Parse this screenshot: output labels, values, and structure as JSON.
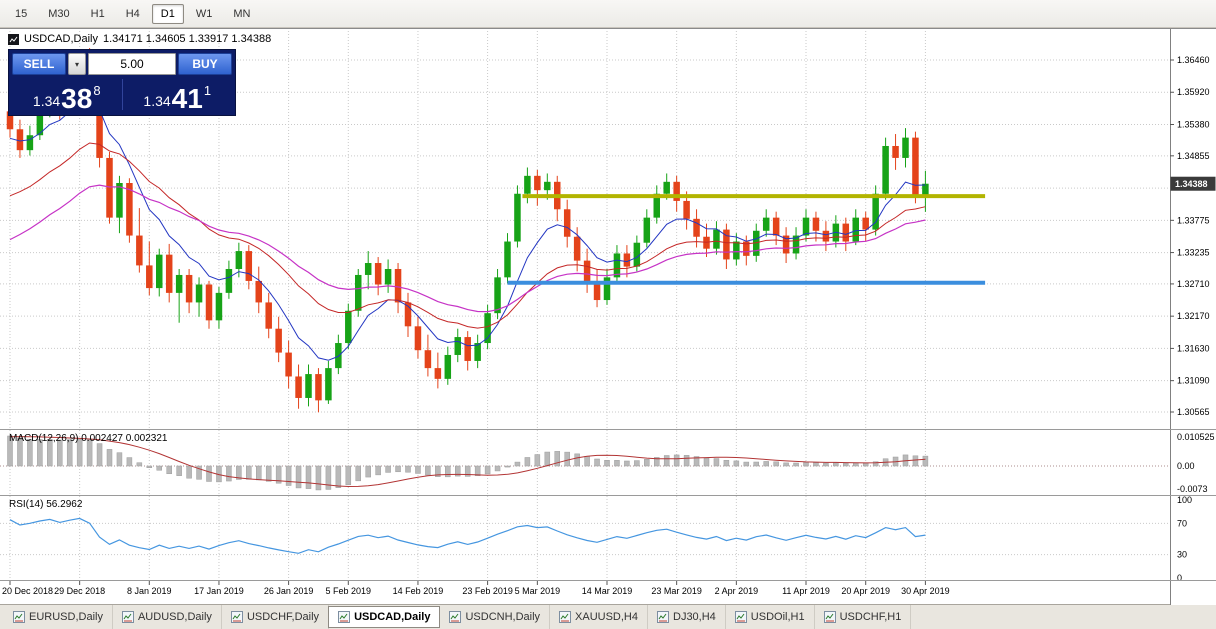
{
  "toolbar": {
    "timeframes": [
      {
        "label": "15",
        "active": false
      },
      {
        "label": "M30",
        "active": false
      },
      {
        "label": "H1",
        "active": false
      },
      {
        "label": "H4",
        "active": false
      },
      {
        "label": "D1",
        "active": true
      },
      {
        "label": "W1",
        "active": false
      },
      {
        "label": "MN",
        "active": false
      }
    ]
  },
  "chart_title": {
    "symbol": "USDCAD,Daily",
    "ohlc": "1.34171 1.34605 1.33917 1.34388"
  },
  "trade_panel": {
    "sell_label": "SELL",
    "buy_label": "BUY",
    "lot_value": "5.00",
    "dropdown_glyph": "▾",
    "sell_price_base": "1.34",
    "sell_price_big": "38",
    "sell_price_sup": "8",
    "buy_price_base": "1.34",
    "buy_price_big": "41",
    "buy_price_sup": "1"
  },
  "indicators": {
    "macd_label": "MACD(12,26,9) 0.002427 0.002321",
    "rsi_label": "RSI(14) 56.2962"
  },
  "chart_data": {
    "type": "candlestick",
    "symbol": "USDCAD",
    "timeframe": "Daily",
    "candles": [
      [
        1.356,
        1.3578,
        1.3516,
        1.353
      ],
      [
        1.353,
        1.3546,
        1.3482,
        1.3495
      ],
      [
        1.3495,
        1.3536,
        1.3486,
        1.352
      ],
      [
        1.352,
        1.3576,
        1.3512,
        1.356
      ],
      [
        1.356,
        1.3606,
        1.355,
        1.359
      ],
      [
        1.359,
        1.3602,
        1.3546,
        1.357
      ],
      [
        1.357,
        1.3626,
        1.3562,
        1.361
      ],
      [
        1.361,
        1.3662,
        1.36,
        1.3645
      ],
      [
        1.3645,
        1.3666,
        1.3596,
        1.3612
      ],
      [
        1.3612,
        1.3636,
        1.3466,
        1.3482
      ],
      [
        1.3482,
        1.3492,
        1.3372,
        1.3382
      ],
      [
        1.3382,
        1.3452,
        1.3356,
        1.344
      ],
      [
        1.344,
        1.3448,
        1.334,
        1.3352
      ],
      [
        1.3352,
        1.3398,
        1.329,
        1.3302
      ],
      [
        1.3302,
        1.3342,
        1.3252,
        1.3264
      ],
      [
        1.3264,
        1.333,
        1.325,
        1.332
      ],
      [
        1.332,
        1.3338,
        1.324,
        1.3256
      ],
      [
        1.3256,
        1.3296,
        1.3206,
        1.3286
      ],
      [
        1.3286,
        1.3296,
        1.3222,
        1.324
      ],
      [
        1.324,
        1.3282,
        1.3216,
        1.327
      ],
      [
        1.327,
        1.3276,
        1.3196,
        1.321
      ],
      [
        1.321,
        1.3266,
        1.3196,
        1.3256
      ],
      [
        1.3256,
        1.331,
        1.3246,
        1.3296
      ],
      [
        1.3296,
        1.334,
        1.3282,
        1.3326
      ],
      [
        1.3326,
        1.3336,
        1.3262,
        1.3276
      ],
      [
        1.3276,
        1.33,
        1.3222,
        1.324
      ],
      [
        1.324,
        1.3256,
        1.318,
        1.3196
      ],
      [
        1.3196,
        1.3216,
        1.314,
        1.3156
      ],
      [
        1.3156,
        1.3176,
        1.3096,
        1.3116
      ],
      [
        1.3116,
        1.3136,
        1.3062,
        1.308
      ],
      [
        1.308,
        1.3136,
        1.3066,
        1.312
      ],
      [
        1.312,
        1.313,
        1.3056,
        1.3076
      ],
      [
        1.3076,
        1.3142,
        1.307,
        1.313
      ],
      [
        1.313,
        1.3186,
        1.312,
        1.3172
      ],
      [
        1.3172,
        1.3238,
        1.3162,
        1.3226
      ],
      [
        1.3226,
        1.3296,
        1.3216,
        1.3286
      ],
      [
        1.3286,
        1.3326,
        1.3262,
        1.3306
      ],
      [
        1.3306,
        1.3316,
        1.3252,
        1.327
      ],
      [
        1.327,
        1.3312,
        1.3256,
        1.3296
      ],
      [
        1.3296,
        1.3306,
        1.3222,
        1.324
      ],
      [
        1.324,
        1.3256,
        1.3182,
        1.32
      ],
      [
        1.32,
        1.3216,
        1.3146,
        1.316
      ],
      [
        1.316,
        1.3186,
        1.3116,
        1.313
      ],
      [
        1.313,
        1.3156,
        1.3096,
        1.3112
      ],
      [
        1.3112,
        1.3166,
        1.3102,
        1.3152
      ],
      [
        1.3152,
        1.3196,
        1.314,
        1.3182
      ],
      [
        1.3182,
        1.3192,
        1.3126,
        1.3142
      ],
      [
        1.3142,
        1.3186,
        1.313,
        1.3172
      ],
      [
        1.3172,
        1.3236,
        1.3162,
        1.3222
      ],
      [
        1.3222,
        1.3296,
        1.3212,
        1.3282
      ],
      [
        1.3282,
        1.3356,
        1.3272,
        1.3342
      ],
      [
        1.3342,
        1.3436,
        1.3332,
        1.3422
      ],
      [
        1.3422,
        1.3466,
        1.3406,
        1.3452
      ],
      [
        1.3452,
        1.3462,
        1.3402,
        1.3428
      ],
      [
        1.3428,
        1.3456,
        1.3412,
        1.3442
      ],
      [
        1.3442,
        1.3452,
        1.3376,
        1.3396
      ],
      [
        1.3396,
        1.3412,
        1.3332,
        1.335
      ],
      [
        1.335,
        1.3366,
        1.3292,
        1.331
      ],
      [
        1.331,
        1.333,
        1.3256,
        1.3272
      ],
      [
        1.3272,
        1.3296,
        1.3232,
        1.3244
      ],
      [
        1.3244,
        1.3296,
        1.3236,
        1.3282
      ],
      [
        1.3282,
        1.3336,
        1.3272,
        1.3322
      ],
      [
        1.3322,
        1.3336,
        1.3282,
        1.33
      ],
      [
        1.33,
        1.3352,
        1.3292,
        1.334
      ],
      [
        1.334,
        1.3396,
        1.3332,
        1.3382
      ],
      [
        1.3382,
        1.3436,
        1.3372,
        1.3422
      ],
      [
        1.3422,
        1.3456,
        1.3412,
        1.3442
      ],
      [
        1.3442,
        1.3452,
        1.3392,
        1.341
      ],
      [
        1.341,
        1.3426,
        1.3362,
        1.338
      ],
      [
        1.338,
        1.3396,
        1.3332,
        1.335
      ],
      [
        1.335,
        1.3372,
        1.3316,
        1.333
      ],
      [
        1.333,
        1.3376,
        1.332,
        1.3362
      ],
      [
        1.3362,
        1.3372,
        1.3296,
        1.3312
      ],
      [
        1.3312,
        1.3356,
        1.3302,
        1.3342
      ],
      [
        1.3342,
        1.3352,
        1.3302,
        1.3318
      ],
      [
        1.3318,
        1.3372,
        1.3308,
        1.336
      ],
      [
        1.336,
        1.3396,
        1.335,
        1.3382
      ],
      [
        1.3382,
        1.3392,
        1.3336,
        1.3352
      ],
      [
        1.3352,
        1.3366,
        1.3306,
        1.3322
      ],
      [
        1.3322,
        1.3366,
        1.3312,
        1.3352
      ],
      [
        1.3352,
        1.3396,
        1.3342,
        1.3382
      ],
      [
        1.3382,
        1.3392,
        1.3342,
        1.336
      ],
      [
        1.336,
        1.3376,
        1.3326,
        1.3342
      ],
      [
        1.3342,
        1.3386,
        1.3332,
        1.3372
      ],
      [
        1.3372,
        1.3382,
        1.3326,
        1.3342
      ],
      [
        1.3342,
        1.3396,
        1.3336,
        1.3382
      ],
      [
        1.3382,
        1.3392,
        1.3342,
        1.3362
      ],
      [
        1.3362,
        1.3436,
        1.3352,
        1.3422
      ],
      [
        1.3422,
        1.3516,
        1.3412,
        1.3502
      ],
      [
        1.3502,
        1.3522,
        1.3462,
        1.3482
      ],
      [
        1.3482,
        1.3532,
        1.3466,
        1.3516
      ],
      [
        1.3516,
        1.3526,
        1.3406,
        1.3417
      ],
      [
        1.34171,
        1.34605,
        1.33917,
        1.34388
      ]
    ],
    "warmup_closes": [
      1.306,
      1.309,
      1.3075,
      1.311,
      1.314,
      1.3125,
      1.316,
      1.3195,
      1.318,
      1.3215,
      1.325,
      1.3235,
      1.327,
      1.3305,
      1.329,
      1.3325,
      1.336,
      1.3345,
      1.338,
      1.3415,
      1.34,
      1.3435,
      1.347,
      1.3455,
      1.349,
      1.352,
      1.3505,
      1.354,
      1.357,
      1.3555
    ],
    "moving_averages": [
      {
        "period": 8,
        "method": "ema",
        "color": "#2336c2",
        "width": 1
      },
      {
        "period": 21,
        "method": "ema",
        "color": "#c42727",
        "width": 1
      },
      {
        "period": 34,
        "method": "ema",
        "color": "#c633c6",
        "width": 1.2
      }
    ],
    "hlines": [
      {
        "price": 1.3418,
        "color": "#b2b400",
        "width": 4,
        "start_index": 51.5,
        "end_index": 98
      },
      {
        "price": 1.3273,
        "color": "#3b8ede",
        "width": 4,
        "start_index": 50.0,
        "end_index": 98
      }
    ],
    "price_axis": {
      "labels": [
        "1.36460",
        "1.35920",
        "1.35380",
        "1.34855",
        "1.33775",
        "1.33235",
        "1.32710",
        "1.32170",
        "1.31630",
        "1.31090",
        "1.30565"
      ],
      "hidden_grid_levels": [
        1.34315
      ],
      "current_price": "1.34388",
      "current_value": 1.34388
    },
    "time_axis": {
      "tick_indices": [
        0,
        7,
        14,
        21,
        28,
        34,
        41,
        48,
        53,
        60,
        67,
        73,
        80,
        86,
        92
      ],
      "labels": [
        "20 Dec 2018",
        "29 Dec 2018",
        "8 Jan 2019",
        "17 Jan 2019",
        "26 Jan 2019",
        "5 Feb 2019",
        "14 Feb 2019",
        "23 Feb 2019",
        "5 Mar 2019",
        "14 Mar 2019",
        "23 Mar 2019",
        "2 Apr 2019",
        "11 Apr 2019",
        "20 Apr 2019",
        "30 Apr 2019"
      ]
    },
    "macd": {
      "fast": 12,
      "slow": 26,
      "signal": 9,
      "scale_labels": [
        "0.010525",
        "0.00",
        "-0.0073"
      ],
      "value_text": "0.002427 0.002321"
    },
    "rsi": {
      "period": 14,
      "levels": [
        70,
        30
      ],
      "scale_labels": [
        "100",
        "70",
        "30",
        "0"
      ],
      "value_text": "56.2962"
    },
    "colors": {
      "bull": "#17a317",
      "bear": "#e4431a",
      "grid": "#c9c9c9",
      "separator": "#9a9a9a",
      "macd_hist": "#b9b9b9",
      "macd_hist_edge": "#9d9d9d",
      "macd_signal": "#b23434",
      "macd_zero": "#ab8e8e",
      "rsi_line": "#4596e0",
      "axis_text": "#000000",
      "price_tag_bg": "#3a3a3a",
      "price_tag_text": "#ffffff"
    }
  },
  "bottom_tabs": [
    {
      "label": "EURUSD,Daily",
      "active": false
    },
    {
      "label": "AUDUSD,Daily",
      "active": false
    },
    {
      "label": "USDCHF,Daily",
      "active": false
    },
    {
      "label": "USDCAD,Daily",
      "active": true
    },
    {
      "label": "USDCNH,Daily",
      "active": false
    },
    {
      "label": "XAUUSD,H4",
      "active": false
    },
    {
      "label": "DJ30,H4",
      "active": false
    },
    {
      "label": "USDOil,H1",
      "active": false
    },
    {
      "label": "USDCHF,H1",
      "active": false
    }
  ]
}
